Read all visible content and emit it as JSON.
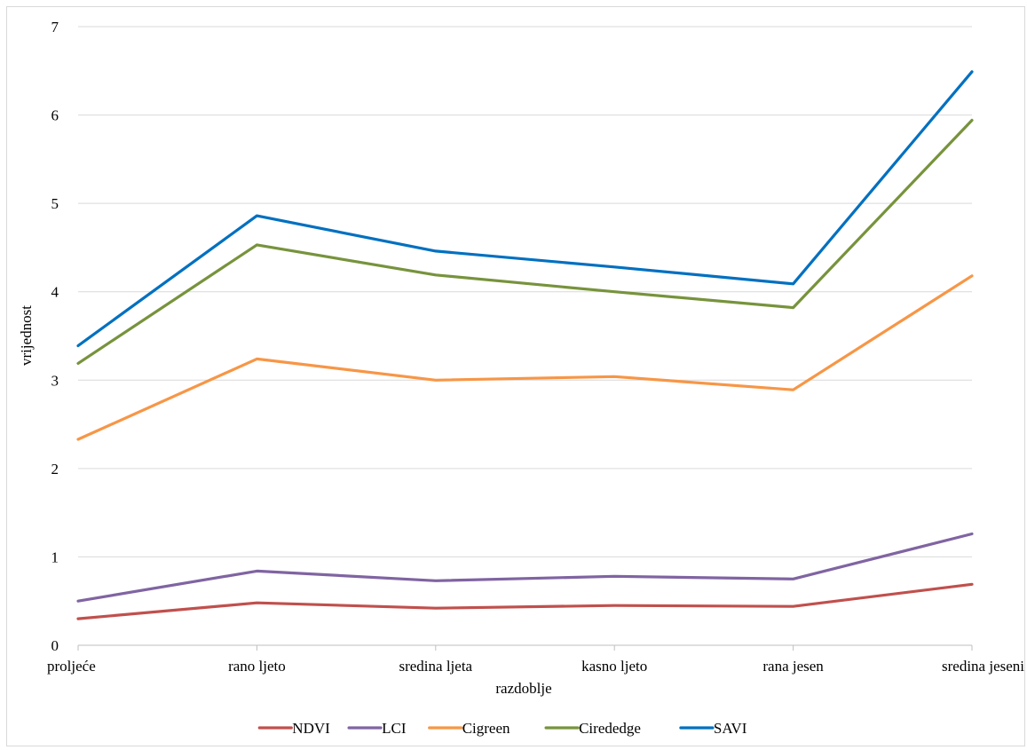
{
  "chart_data": {
    "type": "line",
    "title": "",
    "xlabel": "razdoblje",
    "ylabel": "vrijednost",
    "ylim": [
      0,
      7
    ],
    "yticks": [
      0,
      1,
      2,
      3,
      4,
      5,
      6,
      7
    ],
    "grid": true,
    "legend_position": "bottom",
    "categories": [
      "proljeće",
      "rano ljeto",
      "sredina ljeta",
      "kasno ljeto",
      "rana jesen",
      "sredina jeseni"
    ],
    "series": [
      {
        "name": "NDVI",
        "color": "#c0504d",
        "values": [
          0.3,
          0.48,
          0.42,
          0.45,
          0.44,
          0.69
        ]
      },
      {
        "name": "LCI",
        "color": "#8064a2",
        "values": [
          0.5,
          0.84,
          0.73,
          0.78,
          0.75,
          1.26
        ]
      },
      {
        "name": "Cigreen",
        "color": "#f79646",
        "values": [
          2.33,
          3.24,
          3.0,
          3.04,
          2.89,
          4.18
        ]
      },
      {
        "name": "Cirededge",
        "color": "#77933c",
        "values": [
          3.19,
          4.53,
          4.19,
          4.0,
          3.82,
          5.94
        ]
      },
      {
        "name": "SAVI",
        "color": "#0070c0",
        "values": [
          3.39,
          4.86,
          4.46,
          4.28,
          4.09,
          6.49
        ]
      }
    ]
  }
}
